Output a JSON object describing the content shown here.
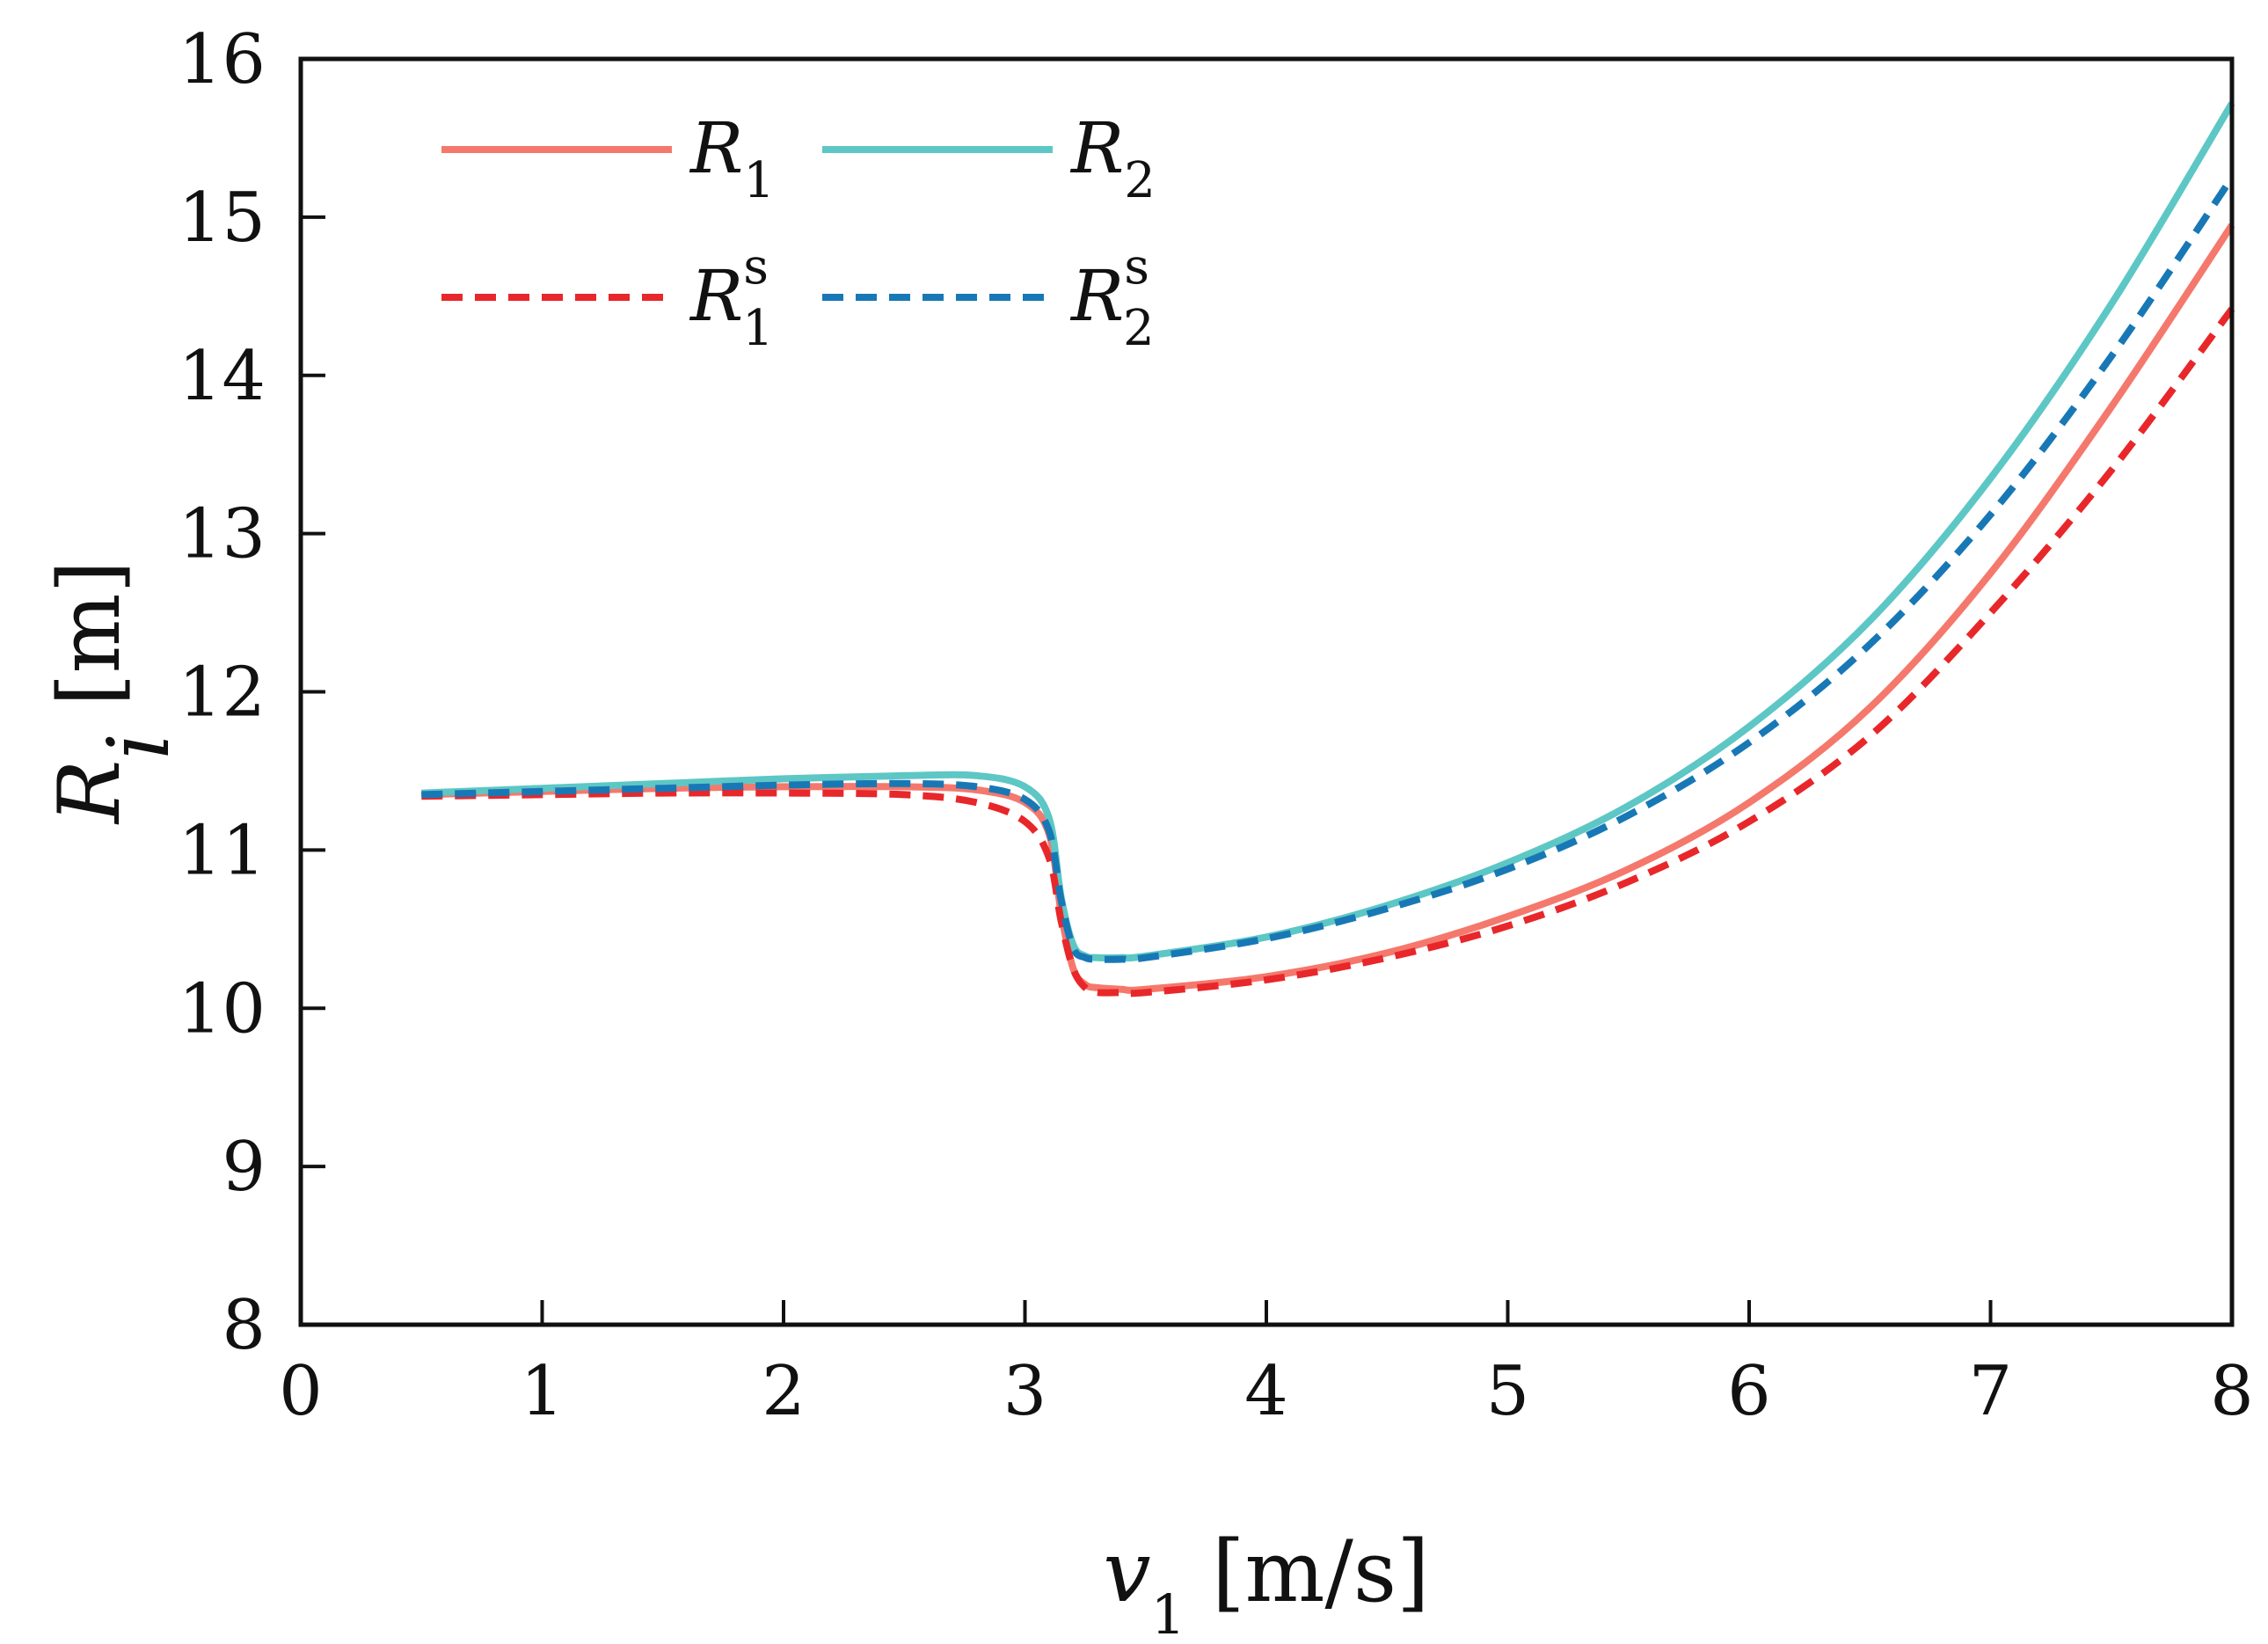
{
  "chart_data": {
    "type": "line",
    "title": "",
    "xlabel": {
      "symbol": "v",
      "subscript": "1",
      "unit": "[m/s]"
    },
    "ylabel": {
      "symbol": "R",
      "subscript": "i",
      "unit": "[m]"
    },
    "xlim": [
      0,
      8
    ],
    "ylim": [
      8,
      16
    ],
    "xticks": [
      "0",
      "1",
      "2",
      "3",
      "4",
      "5",
      "6",
      "7",
      "8"
    ],
    "yticks": [
      "8",
      "9",
      "10",
      "11",
      "12",
      "13",
      "14",
      "15",
      "16"
    ],
    "grid": false,
    "legend": {
      "position": "top-left",
      "columns": 2
    },
    "series": [
      {
        "name": "R1",
        "label": {
          "base": "R",
          "sub": "1",
          "sup": ""
        },
        "color": "#f5786c",
        "style": "solid",
        "x": [
          0.5,
          1.0,
          1.5,
          2.0,
          2.5,
          2.8,
          3.0,
          3.1,
          3.15,
          3.2,
          3.25,
          3.3,
          3.4,
          3.5,
          4.0,
          4.5,
          5.0,
          5.5,
          6.0,
          6.5,
          7.0,
          7.5,
          8.0
        ],
        "y": [
          11.35,
          11.37,
          11.39,
          11.4,
          11.4,
          11.38,
          11.3,
          11.1,
          10.6,
          10.25,
          10.15,
          10.13,
          10.12,
          10.12,
          10.2,
          10.35,
          10.58,
          10.88,
          11.3,
          11.9,
          12.75,
          13.8,
          14.95
        ]
      },
      {
        "name": "R2",
        "label": {
          "base": "R",
          "sub": "2",
          "sup": ""
        },
        "color": "#5dc7c5",
        "style": "solid",
        "x": [
          0.5,
          1.0,
          1.5,
          2.0,
          2.5,
          2.8,
          3.0,
          3.1,
          3.15,
          3.2,
          3.25,
          3.3,
          3.4,
          3.5,
          4.0,
          4.5,
          5.0,
          5.5,
          6.0,
          6.5,
          7.0,
          7.5,
          8.0
        ],
        "y": [
          11.36,
          11.39,
          11.42,
          11.45,
          11.47,
          11.47,
          11.4,
          11.2,
          10.7,
          10.4,
          10.33,
          10.32,
          10.32,
          10.33,
          10.45,
          10.65,
          10.92,
          11.28,
          11.78,
          12.45,
          13.35,
          14.45,
          15.72
        ]
      },
      {
        "name": "R1s",
        "label": {
          "base": "R",
          "sub": "1",
          "sup": "s"
        },
        "color": "#e8272b",
        "style": "dashed",
        "x": [
          0.5,
          1.0,
          1.5,
          2.0,
          2.5,
          2.8,
          3.0,
          3.1,
          3.15,
          3.2,
          3.25,
          3.3,
          3.4,
          3.5,
          4.0,
          4.5,
          5.0,
          5.5,
          6.0,
          6.5,
          7.0,
          7.5,
          8.0
        ],
        "y": [
          11.34,
          11.35,
          11.36,
          11.36,
          11.35,
          11.3,
          11.18,
          10.95,
          10.55,
          10.25,
          10.13,
          10.1,
          10.1,
          10.1,
          10.18,
          10.32,
          10.52,
          10.8,
          11.18,
          11.72,
          12.5,
          13.4,
          14.42
        ]
      },
      {
        "name": "R2s",
        "label": {
          "base": "R",
          "sub": "2",
          "sup": "s"
        },
        "color": "#1878b6",
        "style": "dashed",
        "x": [
          0.5,
          1.0,
          1.5,
          2.0,
          2.5,
          2.8,
          3.0,
          3.1,
          3.15,
          3.2,
          3.25,
          3.3,
          3.4,
          3.5,
          4.0,
          4.5,
          5.0,
          5.5,
          6.0,
          6.5,
          7.0,
          7.5,
          8.0
        ],
        "y": [
          11.35,
          11.37,
          11.39,
          11.41,
          11.42,
          11.4,
          11.32,
          11.12,
          10.68,
          10.38,
          10.32,
          10.31,
          10.31,
          10.32,
          10.44,
          10.63,
          10.88,
          11.22,
          11.68,
          12.3,
          13.12,
          14.12,
          15.25
        ]
      }
    ]
  }
}
